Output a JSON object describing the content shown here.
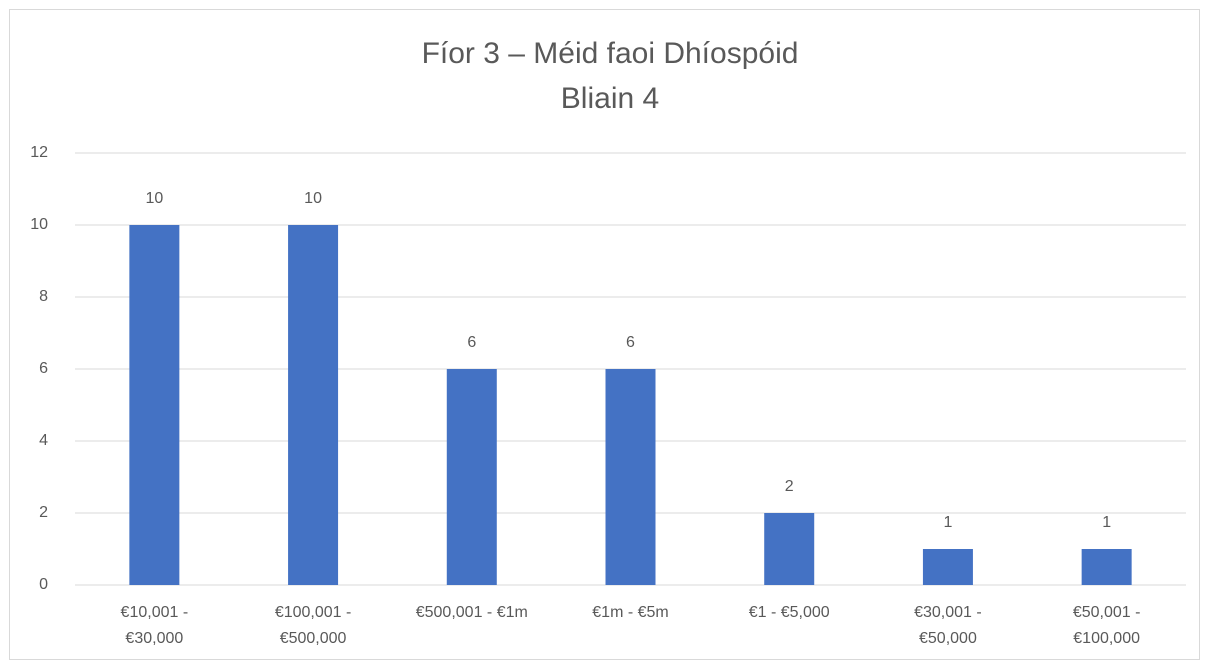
{
  "chart_data": {
    "type": "bar",
    "title": "Fíor 3 – Méid faoi Dhíospóid",
    "subtitle": "Bliain 4",
    "categories": [
      "€10,001 - €30,000",
      "€100,001 - €500,000",
      "€500,001 - €1m",
      "€1m - €5m",
      "€1 - €5,000",
      "€30,001 - €50,000",
      "€50,001 - €100,000"
    ],
    "values": [
      10,
      10,
      6,
      6,
      2,
      1,
      1
    ],
    "color": "#4472c4",
    "ylim": [
      0,
      12
    ],
    "yticks": [
      0,
      2,
      4,
      6,
      8,
      10,
      12
    ],
    "grid": true
  }
}
